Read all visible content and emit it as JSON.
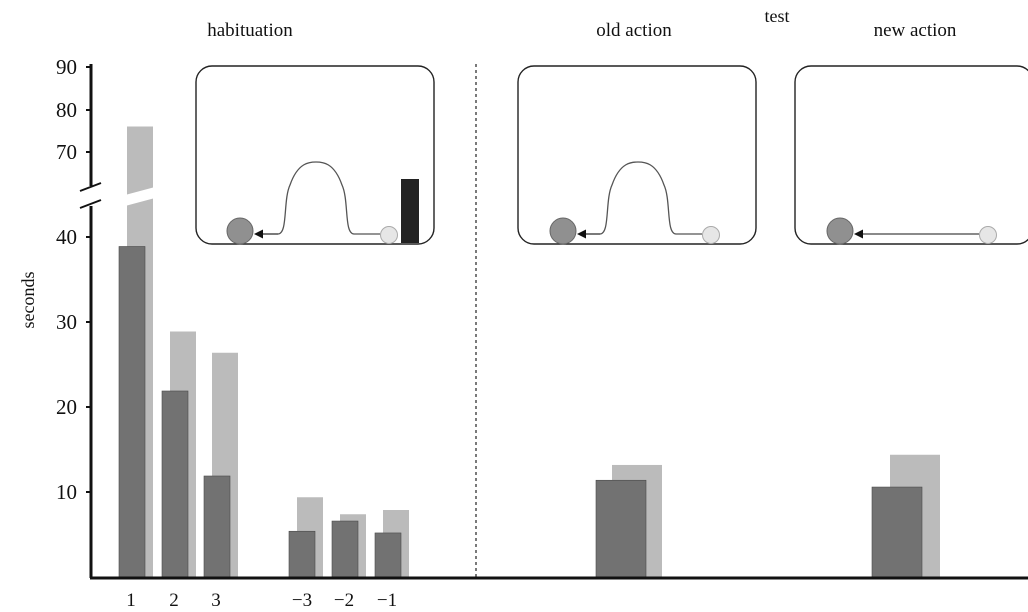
{
  "chart_data": {
    "type": "bar",
    "ylabel": "seconds",
    "ylim": [
      0,
      90
    ],
    "yticks": [
      "10",
      "20",
      "30",
      "40",
      "70",
      "80",
      "90"
    ],
    "axis_break": "between 40 and 70",
    "sections": {
      "habituation": "habituation",
      "test": "test",
      "old_action": "old action",
      "new_action": "new action"
    },
    "categories": [
      "1",
      "2",
      "3",
      "−3",
      "−2",
      "−1",
      "",
      ""
    ],
    "series": [
      {
        "color": "#727272",
        "values": [
          39,
          22,
          12,
          5.5,
          6.7,
          5.3,
          11.5,
          10.7
        ]
      },
      {
        "color": "#bbbbbb",
        "values": [
          76,
          29,
          26.5,
          9.5,
          7.5,
          8,
          13.3,
          14.5
        ]
      }
    ]
  }
}
